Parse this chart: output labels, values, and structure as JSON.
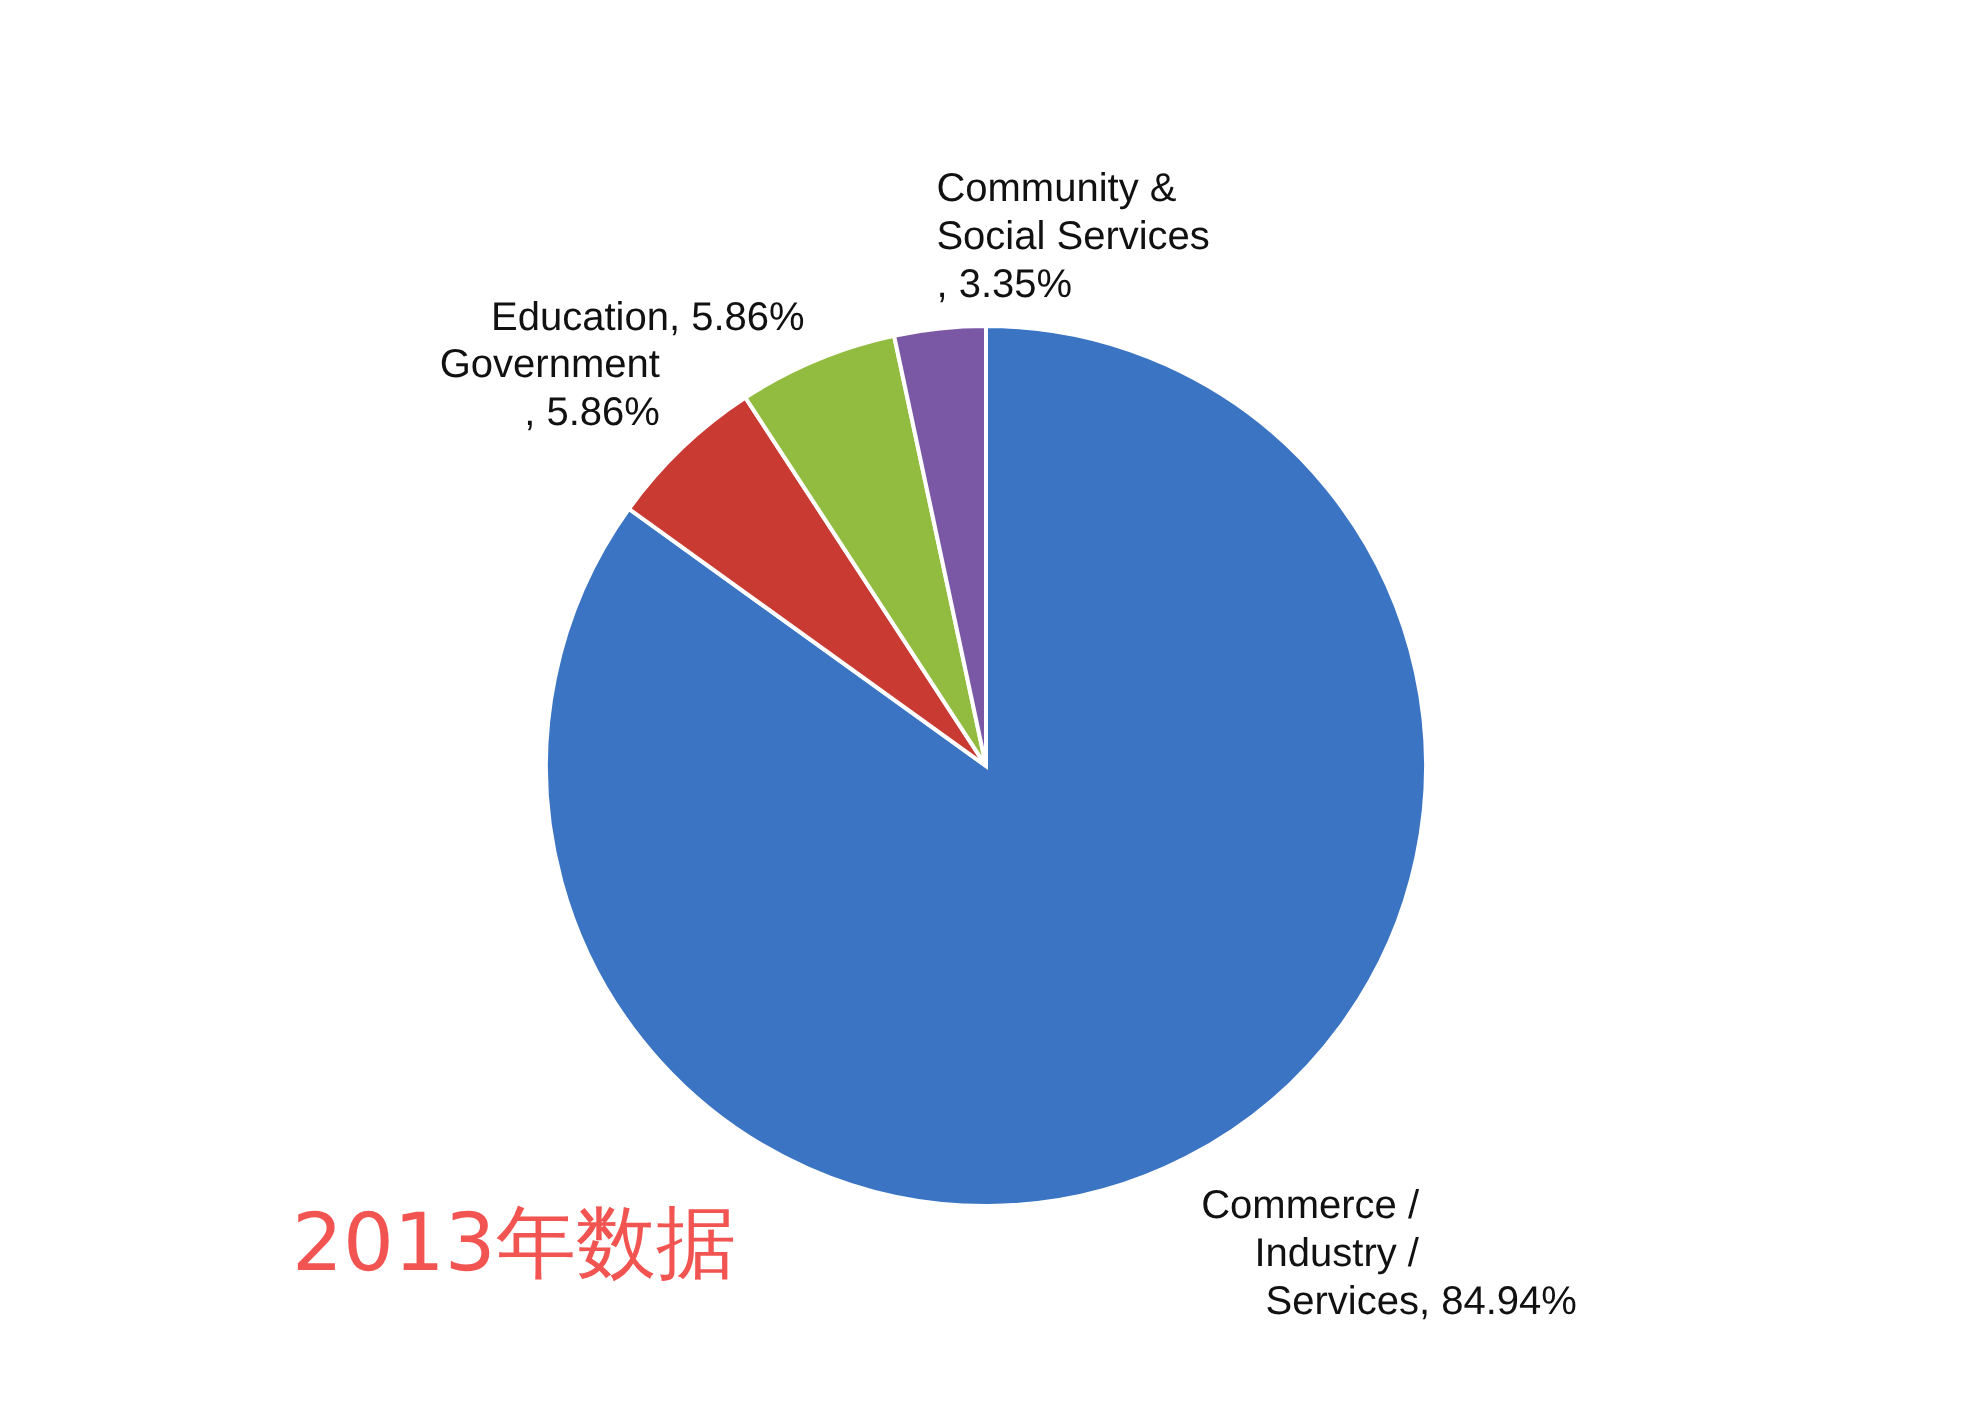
{
  "chart_data": {
    "type": "pie",
    "categories": [
      "Commerce / Industry / Services",
      "Government",
      "Education",
      "Community & Social Services "
    ],
    "values": [
      84.94,
      5.86,
      5.86,
      3.35
    ],
    "value_labels": [
      ", 84.94%",
      ", 5.86%",
      ", 5.86%",
      ", 3.35%"
    ],
    "colors": [
      "#3a74c2",
      "#c93a33",
      "#92bc3f",
      "#7b58a6"
    ],
    "legend": false,
    "annotations": [
      "2013年数据"
    ]
  }
}
